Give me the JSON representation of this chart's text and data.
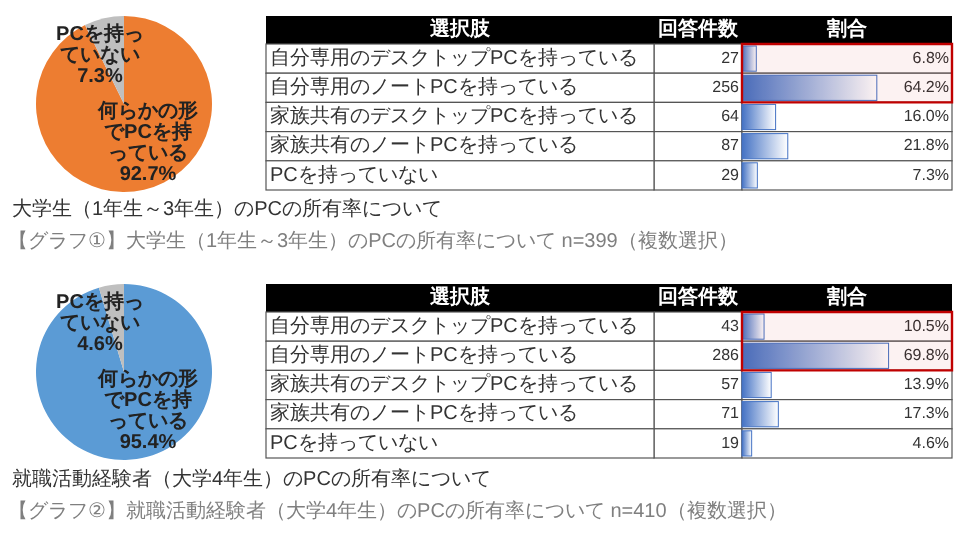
{
  "chart_data": [
    {
      "type": "pie",
      "title": "大学生（1年生～3年生）のPCの所有率について",
      "categories": [
        "何らかの形でPCを持っている",
        "PCを持っていない"
      ],
      "values": [
        92.7,
        7.3
      ],
      "value_labels": [
        "92.7%",
        "7.3%"
      ],
      "colors": [
        "#ed7d31",
        "#bfbfbf"
      ],
      "data_labels": true,
      "annotations": [
        "【グラフ①】大学生（1年生～3年生）のPCの所有率について n=399（複数選択）"
      ]
    },
    {
      "type": "other",
      "title": "回答件数",
      "categories": [
        null,
        null,
        null,
        null,
        null
      ],
      "values": [
        27,
        256,
        64,
        87,
        29
      ],
      "data_labels": true
    },
    {
      "type": "bar",
      "orientation": "horizontal",
      "title": "割合",
      "ylabel": "選択肢",
      "categories": [
        "自分専用のデスクトップPCを持っている",
        "自分専用のノートPCを持っている",
        "家族共有のデスクトップPCを持っている",
        "家族共有のノートPCを持っている",
        "PCを持っていない"
      ],
      "values": [
        6.8,
        64.2,
        16.0,
        21.8,
        7.3
      ],
      "value_labels": [
        "6.8%",
        "64.2%",
        "16.0%",
        "21.8%",
        "7.3%"
      ],
      "color": "#4472c4",
      "xlim": [
        0,
        100
      ],
      "bands": [
        {
          "axis": "y",
          "from": "自分専用のデスクトップPCを持っている",
          "to": "自分専用のノートPCを持っている",
          "color": "#c00000"
        }
      ]
    },
    {
      "type": "pie",
      "title": "就職活動経験者（大学4年生）のPCの所有率について",
      "categories": [
        "何らかの形でPCを持っている",
        "PCを持っていない"
      ],
      "values": [
        95.4,
        4.6
      ],
      "value_labels": [
        "95.4%",
        "4.6%"
      ],
      "colors": [
        "#5b9bd5",
        "#bfbfbf"
      ],
      "data_labels": true,
      "annotations": [
        "【グラフ②】就職活動経験者（大学4年生）のPCの所有率について n=410（複数選択）"
      ]
    },
    {
      "type": "other",
      "title": "回答件数",
      "categories": [
        null,
        null,
        null,
        null,
        null
      ],
      "values": [
        43,
        286,
        57,
        71,
        19
      ],
      "data_labels": true
    },
    {
      "type": "bar",
      "orientation": "horizontal",
      "title": "割合",
      "ylabel": "選択肢",
      "categories": [
        "自分専用のデスクトップPCを持っている",
        "自分専用のノートPCを持っている",
        "家族共有のデスクトップPCを持っている",
        "家族共有のノートPCを持っている",
        "PCを持っていない"
      ],
      "values": [
        10.5,
        69.8,
        13.9,
        17.3,
        4.6
      ],
      "value_labels": [
        "10.5%",
        "69.8%",
        "13.9%",
        "17.3%",
        "4.6%"
      ],
      "color": "#4472c4",
      "xlim": [
        0,
        100
      ],
      "bands": [
        {
          "axis": "y",
          "from": "自分専用のデスクトップPCを持っている",
          "to": "自分専用のノートPCを持っている",
          "color": "#c00000"
        }
      ]
    }
  ]
}
